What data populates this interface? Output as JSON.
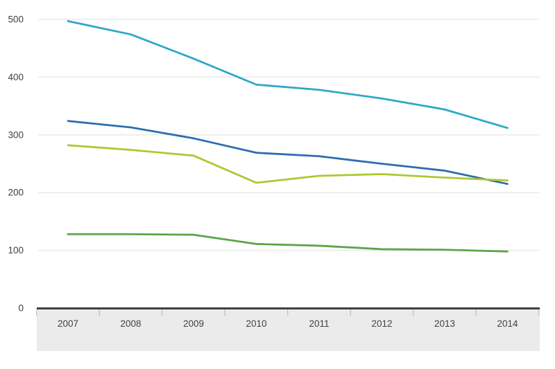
{
  "chart_data": {
    "type": "line",
    "title": "",
    "xlabel": "",
    "ylabel": "",
    "categories": [
      "2007",
      "2008",
      "2009",
      "2010",
      "2011",
      "2012",
      "2013",
      "2014"
    ],
    "series": [
      {
        "name": "teal-line",
        "color": "#2fa8c6",
        "values": [
          497,
          474,
          432,
          387,
          378,
          363,
          344,
          312
        ]
      },
      {
        "name": "blue-line",
        "color": "#2e6cb0",
        "values": [
          324,
          313,
          294,
          269,
          263,
          250,
          238,
          215
        ]
      },
      {
        "name": "lime-line",
        "color": "#aec72e",
        "values": [
          282,
          274,
          264,
          217,
          229,
          232,
          226,
          221
        ]
      },
      {
        "name": "green-line",
        "color": "#5ba447",
        "values": [
          128,
          128,
          127,
          111,
          108,
          102,
          101,
          98
        ]
      }
    ],
    "yticks": [
      0,
      100,
      200,
      300,
      400,
      500
    ],
    "ylim": [
      0,
      500
    ],
    "grid": true,
    "legend": "none"
  },
  "colors": {
    "background": "#ffffff",
    "gridline": "#e6e6e6",
    "axis_line": "#404040",
    "axis_band": "#ebebeb",
    "tick_mark": "#b3b3b3",
    "label": "#404040"
  }
}
